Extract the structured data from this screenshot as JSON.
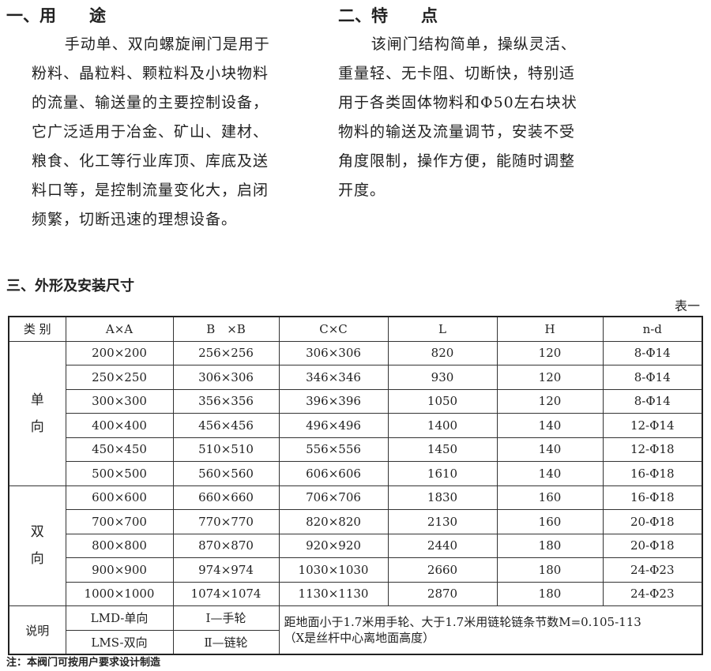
{
  "section1": {
    "title": "一、用　　途",
    "lines": [
      "手动单、双向螺旋闸门是用于",
      "粉料、晶粒料、颗粒料及小块物料",
      "的流量、输送量的主要控制设备，",
      "它广泛适用于冶金、矿山、建材、",
      "粮食、化工等行业库顶、库底及送",
      "料口等，是控制流量变化大，启闭",
      "频繁，切断迅速的理想设备。"
    ]
  },
  "section2": {
    "title": "二、特　　点",
    "lines": [
      "该闸门结构简单，操纵灵活、",
      "重量轻、无卡阻、切断快，特别适",
      "用于各类固体物料和Φ50左右块状",
      "物料的输送及流量调节，安装不受",
      "角度限制，操作方便，能随时调整",
      "开度。"
    ]
  },
  "section3": {
    "title": "三、外形及安装尺寸",
    "table_label": "表一"
  },
  "table": {
    "headers": [
      "类 别",
      "A×A",
      "B　×B",
      "C×C",
      "L",
      "H",
      "n-d"
    ],
    "group1": "单\n向",
    "group2": "双\n向",
    "rows": [
      [
        "200×200",
        "256×256",
        "306×306",
        "820",
        "120",
        "8-Φ14"
      ],
      [
        "250×250",
        "306×306",
        "346×346",
        "930",
        "120",
        "8-Φ14"
      ],
      [
        "300×300",
        "356×356",
        "396×396",
        "1050",
        "120",
        "8-Φ14"
      ],
      [
        "400×400",
        "456×456",
        "496×496",
        "1400",
        "140",
        "12-Φ14"
      ],
      [
        "450×450",
        "510×510",
        "556×556",
        "1450",
        "140",
        "12-Φ18"
      ],
      [
        "500×500",
        "560×560",
        "606×606",
        "1610",
        "140",
        "16-Φ18"
      ],
      [
        "600×600",
        "660×660",
        "706×706",
        "1830",
        "160",
        "16-Φ18"
      ],
      [
        "700×700",
        "770×770",
        "820×820",
        "2130",
        "160",
        "20-Φ18"
      ],
      [
        "800×800",
        "870×870",
        "920×920",
        "2440",
        "180",
        "20-Φ18"
      ],
      [
        "900×900",
        "974×974",
        "1030×1030",
        "2660",
        "180",
        "24-Φ23"
      ],
      [
        "1000×1000",
        "1074×1074",
        "1130×1130",
        "2870",
        "180",
        "24-Φ23"
      ]
    ],
    "notes": {
      "label": "说明",
      "lmd": "LMD-单向",
      "lms": "LMS-双向",
      "hand": "Ⅰ—手轮",
      "chain": "Ⅱ—链轮",
      "text1": "距地面小于1.7米用手轮、大于1.7米用链轮链条节数M=0.105-113",
      "text2": "（X是丝杆中心离地面高度）"
    }
  },
  "footnote": "注：本阀门可按用户要求设计制造"
}
